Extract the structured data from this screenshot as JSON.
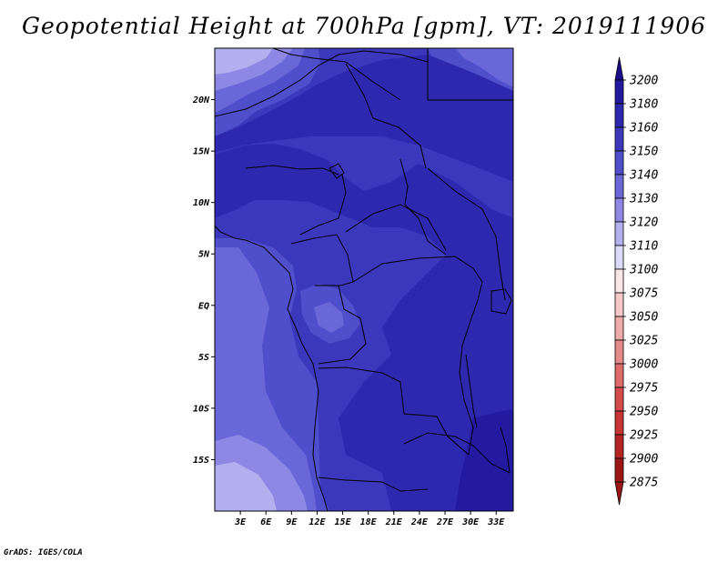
{
  "title": "Geopotential Height at 700hPa [gpm], VT: 2019111906",
  "credit": "GrADS: IGES/COLA",
  "map": {
    "lon_range": [
      0,
      35
    ],
    "lat_range": [
      -20,
      25
    ],
    "lat_ticks": [
      {
        "value": 20,
        "label": "20N"
      },
      {
        "value": 15,
        "label": "15N"
      },
      {
        "value": 10,
        "label": "10N"
      },
      {
        "value": 5,
        "label": "5N"
      },
      {
        "value": 0,
        "label": "EQ"
      },
      {
        "value": -5,
        "label": "5S"
      },
      {
        "value": -10,
        "label": "10S"
      },
      {
        "value": -15,
        "label": "15S"
      }
    ],
    "lon_ticks": [
      {
        "value": 3,
        "label": "3E"
      },
      {
        "value": 6,
        "label": "6E"
      },
      {
        "value": 9,
        "label": "9E"
      },
      {
        "value": 12,
        "label": "12E"
      },
      {
        "value": 15,
        "label": "15E"
      },
      {
        "value": 18,
        "label": "18E"
      },
      {
        "value": 21,
        "label": "21E"
      },
      {
        "value": 24,
        "label": "24E"
      },
      {
        "value": 27,
        "label": "27E"
      },
      {
        "value": 30,
        "label": "30E"
      },
      {
        "value": 33,
        "label": "33E"
      }
    ]
  },
  "colorbar": {
    "levels": [
      {
        "label": "3200",
        "color": "#1a0c8c"
      },
      {
        "label": "3180",
        "color": "#231aa0"
      },
      {
        "label": "3160",
        "color": "#2e28ae"
      },
      {
        "label": "3150",
        "color": "#3b38bc"
      },
      {
        "label": "3140",
        "color": "#4f4fcb"
      },
      {
        "label": "3130",
        "color": "#6a68d8"
      },
      {
        "label": "3120",
        "color": "#8c88e4"
      },
      {
        "label": "3110",
        "color": "#b3b0ef"
      },
      {
        "label": "3100",
        "color": "#dcdaf8"
      },
      {
        "label": "3075",
        "color": "#fbe6e6"
      },
      {
        "label": "3050",
        "color": "#f6c9c9"
      },
      {
        "label": "3025",
        "color": "#efaaaa"
      },
      {
        "label": "3000",
        "color": "#e68989"
      },
      {
        "label": "2975",
        "color": "#de6a6a"
      },
      {
        "label": "2950",
        "color": "#d54b4b"
      },
      {
        "label": "2925",
        "color": "#c93535"
      },
      {
        "label": "2900",
        "color": "#b52424"
      },
      {
        "label": "2875",
        "color": "#9d1616"
      }
    ]
  }
}
